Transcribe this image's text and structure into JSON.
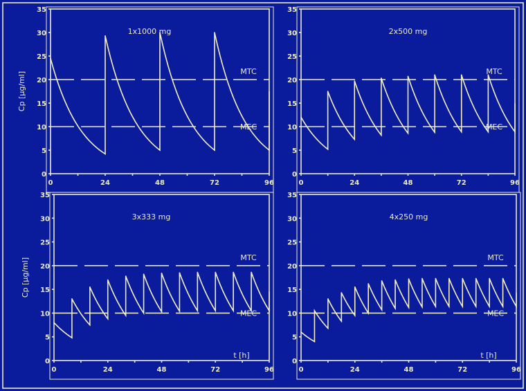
{
  "colors": {
    "background": "#0a1c9c",
    "line": "#f4f0c4"
  },
  "chart_data": [
    {
      "type": "line",
      "title": "1x1000 mg",
      "xlabel": "",
      "ylabel": "Cp [µg/ml]",
      "xlim": [
        0,
        96
      ],
      "ylim": [
        0,
        35
      ],
      "xticks": [
        "0",
        "24",
        "48",
        "72",
        "96"
      ],
      "yticks": [
        "0",
        "5",
        "10",
        "15",
        "20",
        "25",
        "30",
        "35"
      ],
      "dose_interval_h": 24,
      "dose_times": [
        0,
        24,
        48,
        72
      ],
      "peaks": [
        24.5,
        29.3,
        30,
        30
      ],
      "troughs": [
        4.2,
        5,
        5,
        5
      ],
      "ref_lines": [
        {
          "label": "MTC",
          "value": 20
        },
        {
          "label": "MEC",
          "value": 10
        }
      ]
    },
    {
      "type": "line",
      "title": "2x500 mg",
      "xlabel": "",
      "ylabel": "",
      "xlim": [
        0,
        96
      ],
      "ylim": [
        0,
        35
      ],
      "xticks": [
        "0",
        "24",
        "48",
        "72",
        "96"
      ],
      "yticks": [
        "0",
        "5",
        "10",
        "15",
        "20",
        "25",
        "30",
        "35"
      ],
      "dose_interval_h": 12,
      "dose_times": [
        0,
        12,
        24,
        36,
        48,
        60,
        72,
        84
      ],
      "peaks": [
        12,
        17.5,
        19.7,
        20.3,
        20.7,
        21,
        21,
        21
      ],
      "troughs": [
        5.2,
        7.3,
        8.2,
        8.6,
        8.8,
        8.9,
        8.9,
        8.9
      ],
      "ref_lines": [
        {
          "label": "MTC",
          "value": 20
        },
        {
          "label": "MEC",
          "value": 10
        }
      ]
    },
    {
      "type": "line",
      "title": "3x333 mg",
      "xlabel": "t [h]",
      "ylabel": "Cp [µg/ml]",
      "xlim": [
        0,
        96
      ],
      "ylim": [
        0,
        35
      ],
      "xticks": [
        "0",
        "24",
        "48",
        "72",
        "96"
      ],
      "yticks": [
        "0",
        "5",
        "10",
        "15",
        "20",
        "25",
        "30",
        "35"
      ],
      "dose_interval_h": 8,
      "dose_times": [
        0,
        8,
        16,
        24,
        32,
        40,
        48,
        56,
        64,
        72,
        80,
        88
      ],
      "peaks": [
        8,
        13,
        15.5,
        17,
        17.8,
        18.2,
        18.4,
        18.5,
        18.6,
        18.6,
        18.6,
        18.6
      ],
      "troughs": [
        4.8,
        7.5,
        8.8,
        9.5,
        10,
        10.3,
        10.4,
        10.5,
        10.5,
        10.5,
        10.5,
        10.5
      ],
      "ref_lines": [
        {
          "label": "MTC",
          "value": 20
        },
        {
          "label": "MEC",
          "value": 10
        }
      ]
    },
    {
      "type": "line",
      "title": "4x250 mg",
      "xlabel": "t [h]",
      "ylabel": "",
      "xlim": [
        0,
        96
      ],
      "ylim": [
        0,
        35
      ],
      "xticks": [
        "0",
        "24",
        "48",
        "72",
        "96"
      ],
      "yticks": [
        "0",
        "5",
        "10",
        "15",
        "20",
        "25",
        "30",
        "35"
      ],
      "dose_interval_h": 6,
      "dose_times": [
        0,
        6,
        12,
        18,
        24,
        30,
        36,
        42,
        48,
        54,
        60,
        66,
        72,
        78,
        84,
        90
      ],
      "peaks": [
        6,
        10.5,
        13,
        14.3,
        15.5,
        16.2,
        16.8,
        17,
        17.2,
        17.3,
        17.3,
        17.3,
        17.3,
        17.3,
        17.3,
        17.3
      ],
      "troughs": [
        4,
        6.8,
        8.3,
        9.5,
        10,
        10.7,
        11,
        11.2,
        11.3,
        11.4,
        11.4,
        11.4,
        11.4,
        11.4,
        11.4,
        11.4
      ],
      "ref_lines": [
        {
          "label": "MTC",
          "value": 20
        },
        {
          "label": "MEC",
          "value": 10
        }
      ]
    }
  ]
}
